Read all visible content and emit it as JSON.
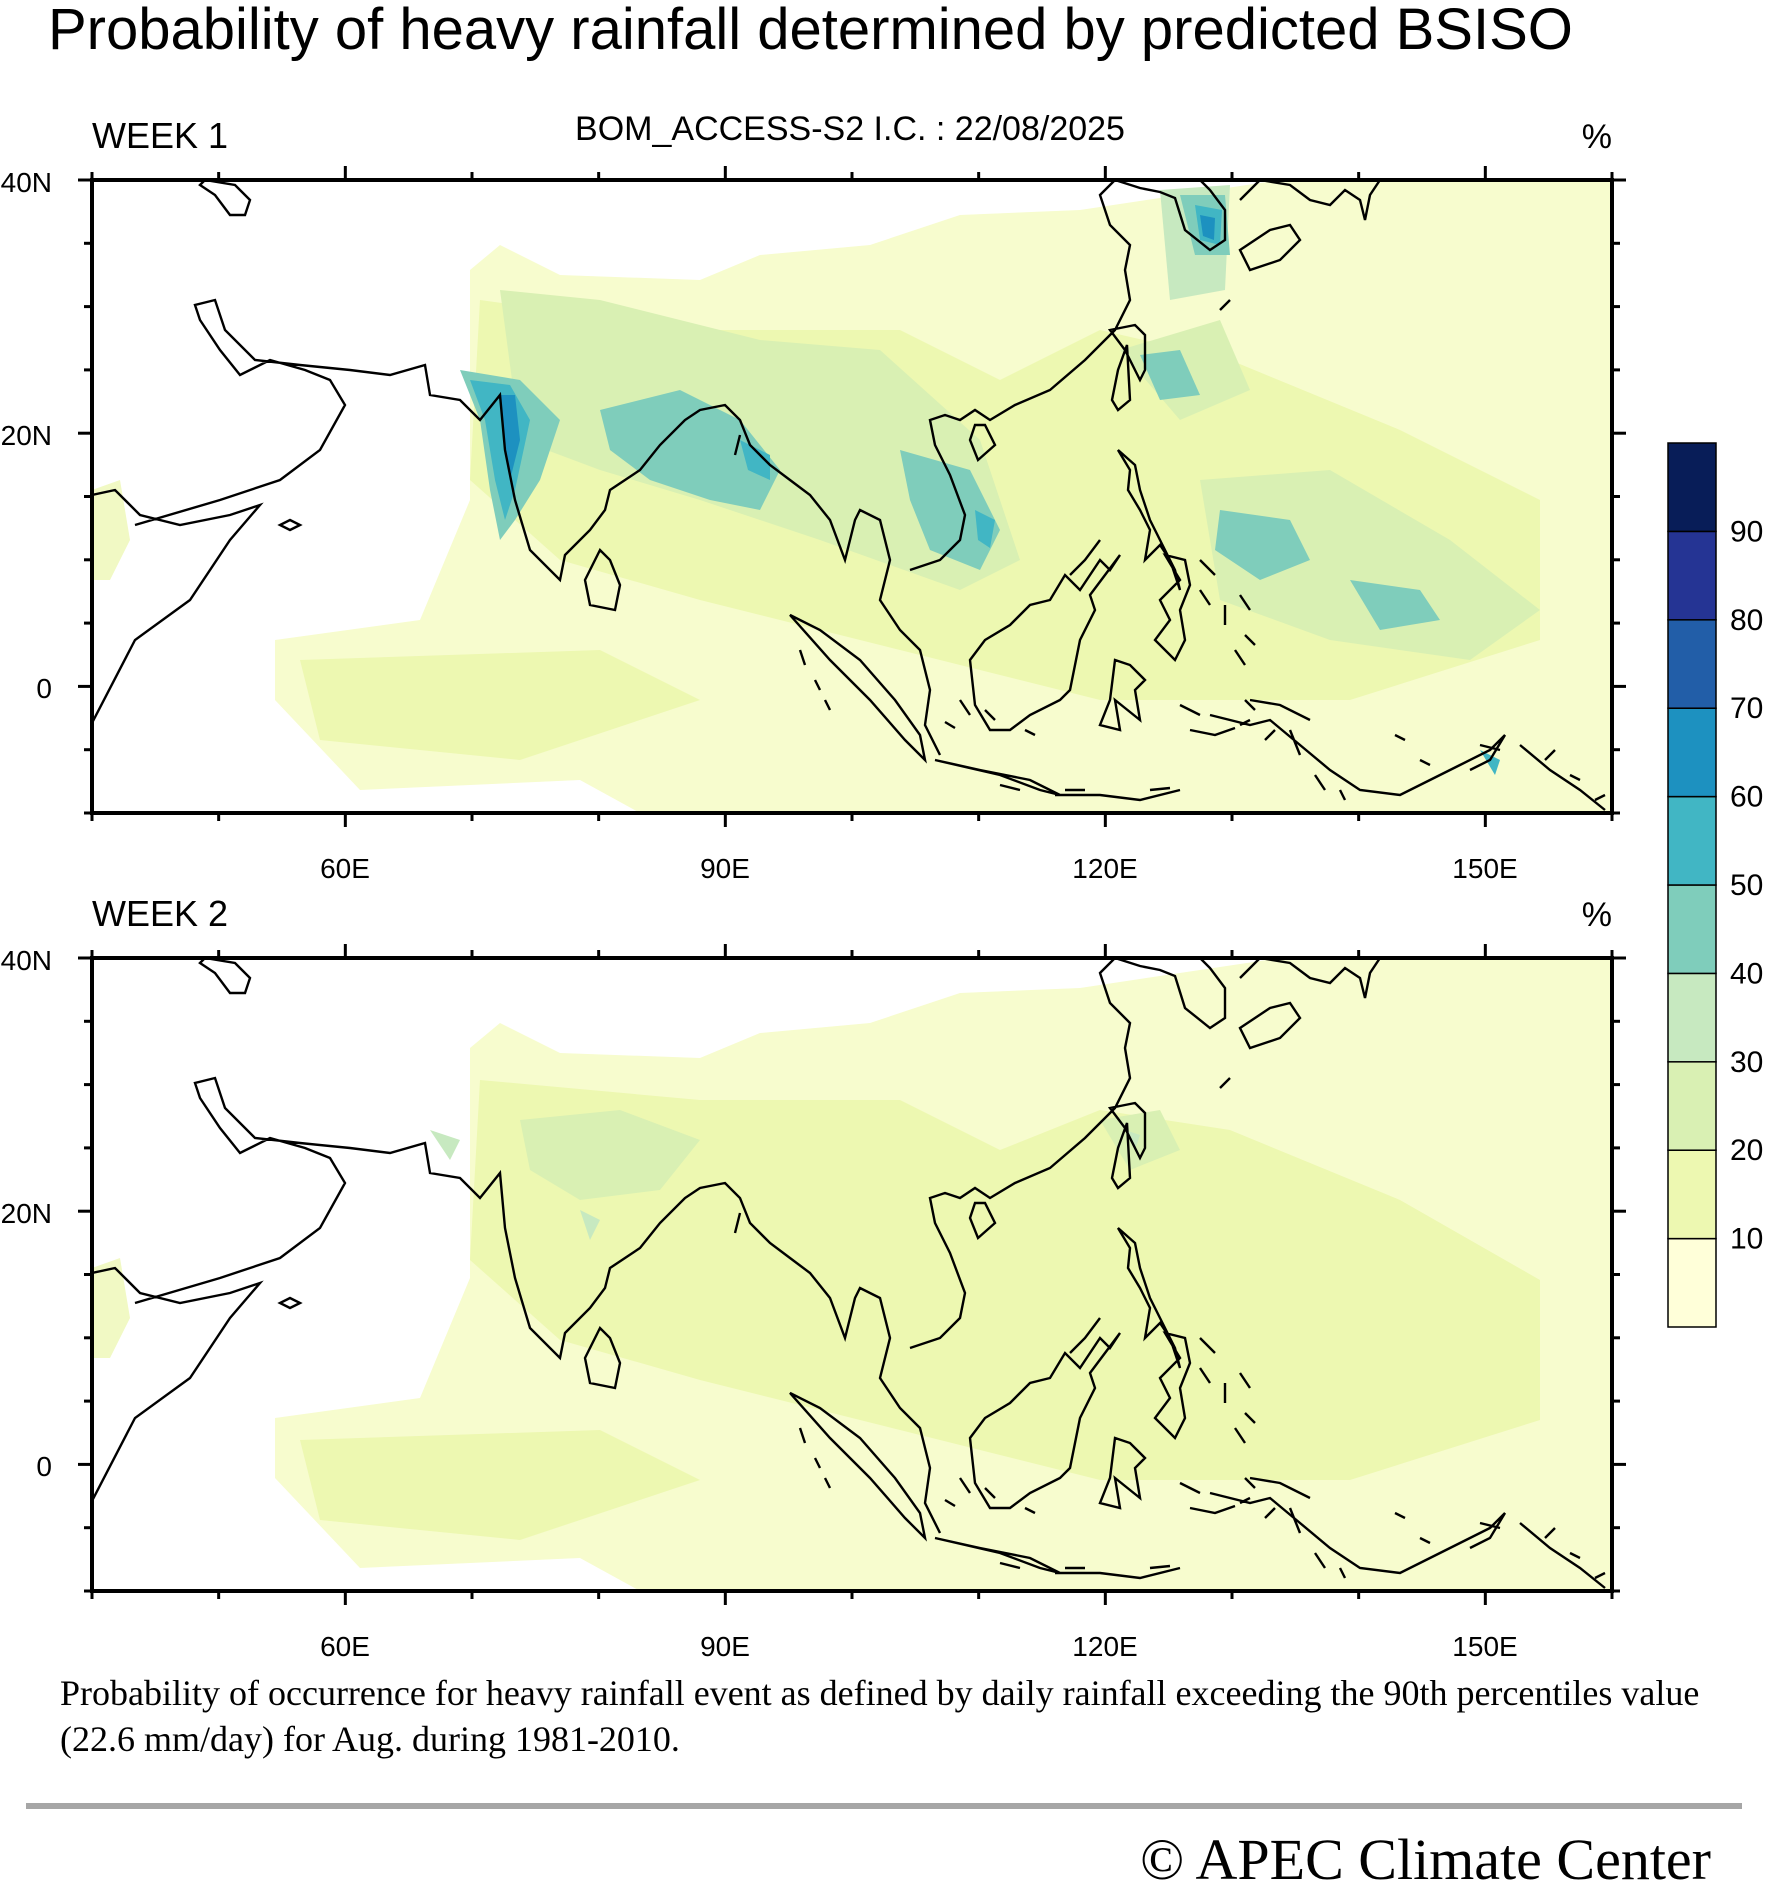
{
  "title": "Probability of heavy rainfall determined by predicted BSISO",
  "subtitle": "BOM_ACCESS-S2  I.C. : 22/08/2025",
  "unit": "%",
  "panels": [
    {
      "label": "WEEK 1",
      "unit": "%"
    },
    {
      "label": "WEEK 2",
      "unit": "%"
    }
  ],
  "axes": {
    "lat_labels": [
      "40N",
      "20N",
      "0"
    ],
    "lon_labels": [
      "60E",
      "90E",
      "120E",
      "150E"
    ],
    "lat_range": [
      -10,
      40
    ],
    "lon_range": [
      40,
      160
    ]
  },
  "colorbar": {
    "levels": [
      "10",
      "20",
      "30",
      "40",
      "50",
      "60",
      "70",
      "80",
      "90"
    ],
    "colors": [
      "#ffffd9",
      "#edf8b1",
      "#d9f0b3",
      "#c7e9c0",
      "#7fcdbb",
      "#41b6c4",
      "#1d91c0",
      "#225ea8",
      "#253494",
      "#081d58"
    ]
  },
  "caption": "Probability of occurrence for heavy rainfall event as defined by daily rainfall exceeding the 90th percentiles value (22.6 mm/day) for Aug. during 1981-2010.",
  "copyright": "© APEC Climate Center"
}
